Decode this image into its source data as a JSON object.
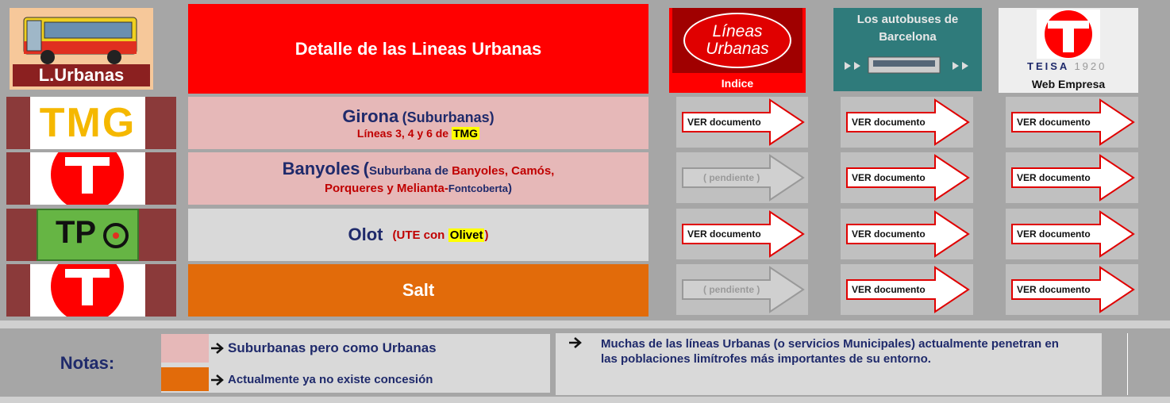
{
  "header": {
    "logo_label": "L.Urbanas",
    "title": "Detalle de las Lineas Urbanas",
    "index_logo": [
      "Líneas",
      "Urbanas"
    ],
    "index_label": "Indice",
    "barcelona_logo": [
      "Los autobuses de",
      "Barcelona"
    ],
    "company_logo": {
      "name": "TEISA",
      "year": "1920"
    },
    "company_label": "Web Empresa"
  },
  "rows": [
    {
      "logo": "TMG",
      "title": [
        "Girona",
        "(Suburbanas)"
      ],
      "subtitle": [
        "Líneas 3, 4 y 6 de",
        "TMG"
      ],
      "buttons": [
        "VER documento",
        "VER documento",
        "VER documento"
      ]
    },
    {
      "title": [
        "Banyoles",
        "(",
        "Suburbana de",
        "Banyoles, Camós,",
        "Porqueres y Melianta-",
        "Fontcoberta",
        ")"
      ],
      "buttons": [
        "( pendiente )",
        "VER documento",
        "VER documento"
      ]
    },
    {
      "logo": "TP",
      "title": [
        "Olot",
        "(UTE con",
        "Olivet",
        ")"
      ],
      "buttons": [
        "VER documento",
        "VER documento",
        "VER documento"
      ]
    },
    {
      "title": [
        "Salt"
      ],
      "buttons": [
        "( pendiente )",
        "VER documento",
        "VER documento"
      ]
    }
  ],
  "notes": {
    "label": "Notas:",
    "legend": [
      "Suburbanas pero como Urbanas",
      "Actualmente ya no existe concesión"
    ],
    "text": "Muchas de las líneas Urbanas (o servicios Municipales) actualmente penetran en las poblaciones limítrofes más importantes de su entorno."
  }
}
